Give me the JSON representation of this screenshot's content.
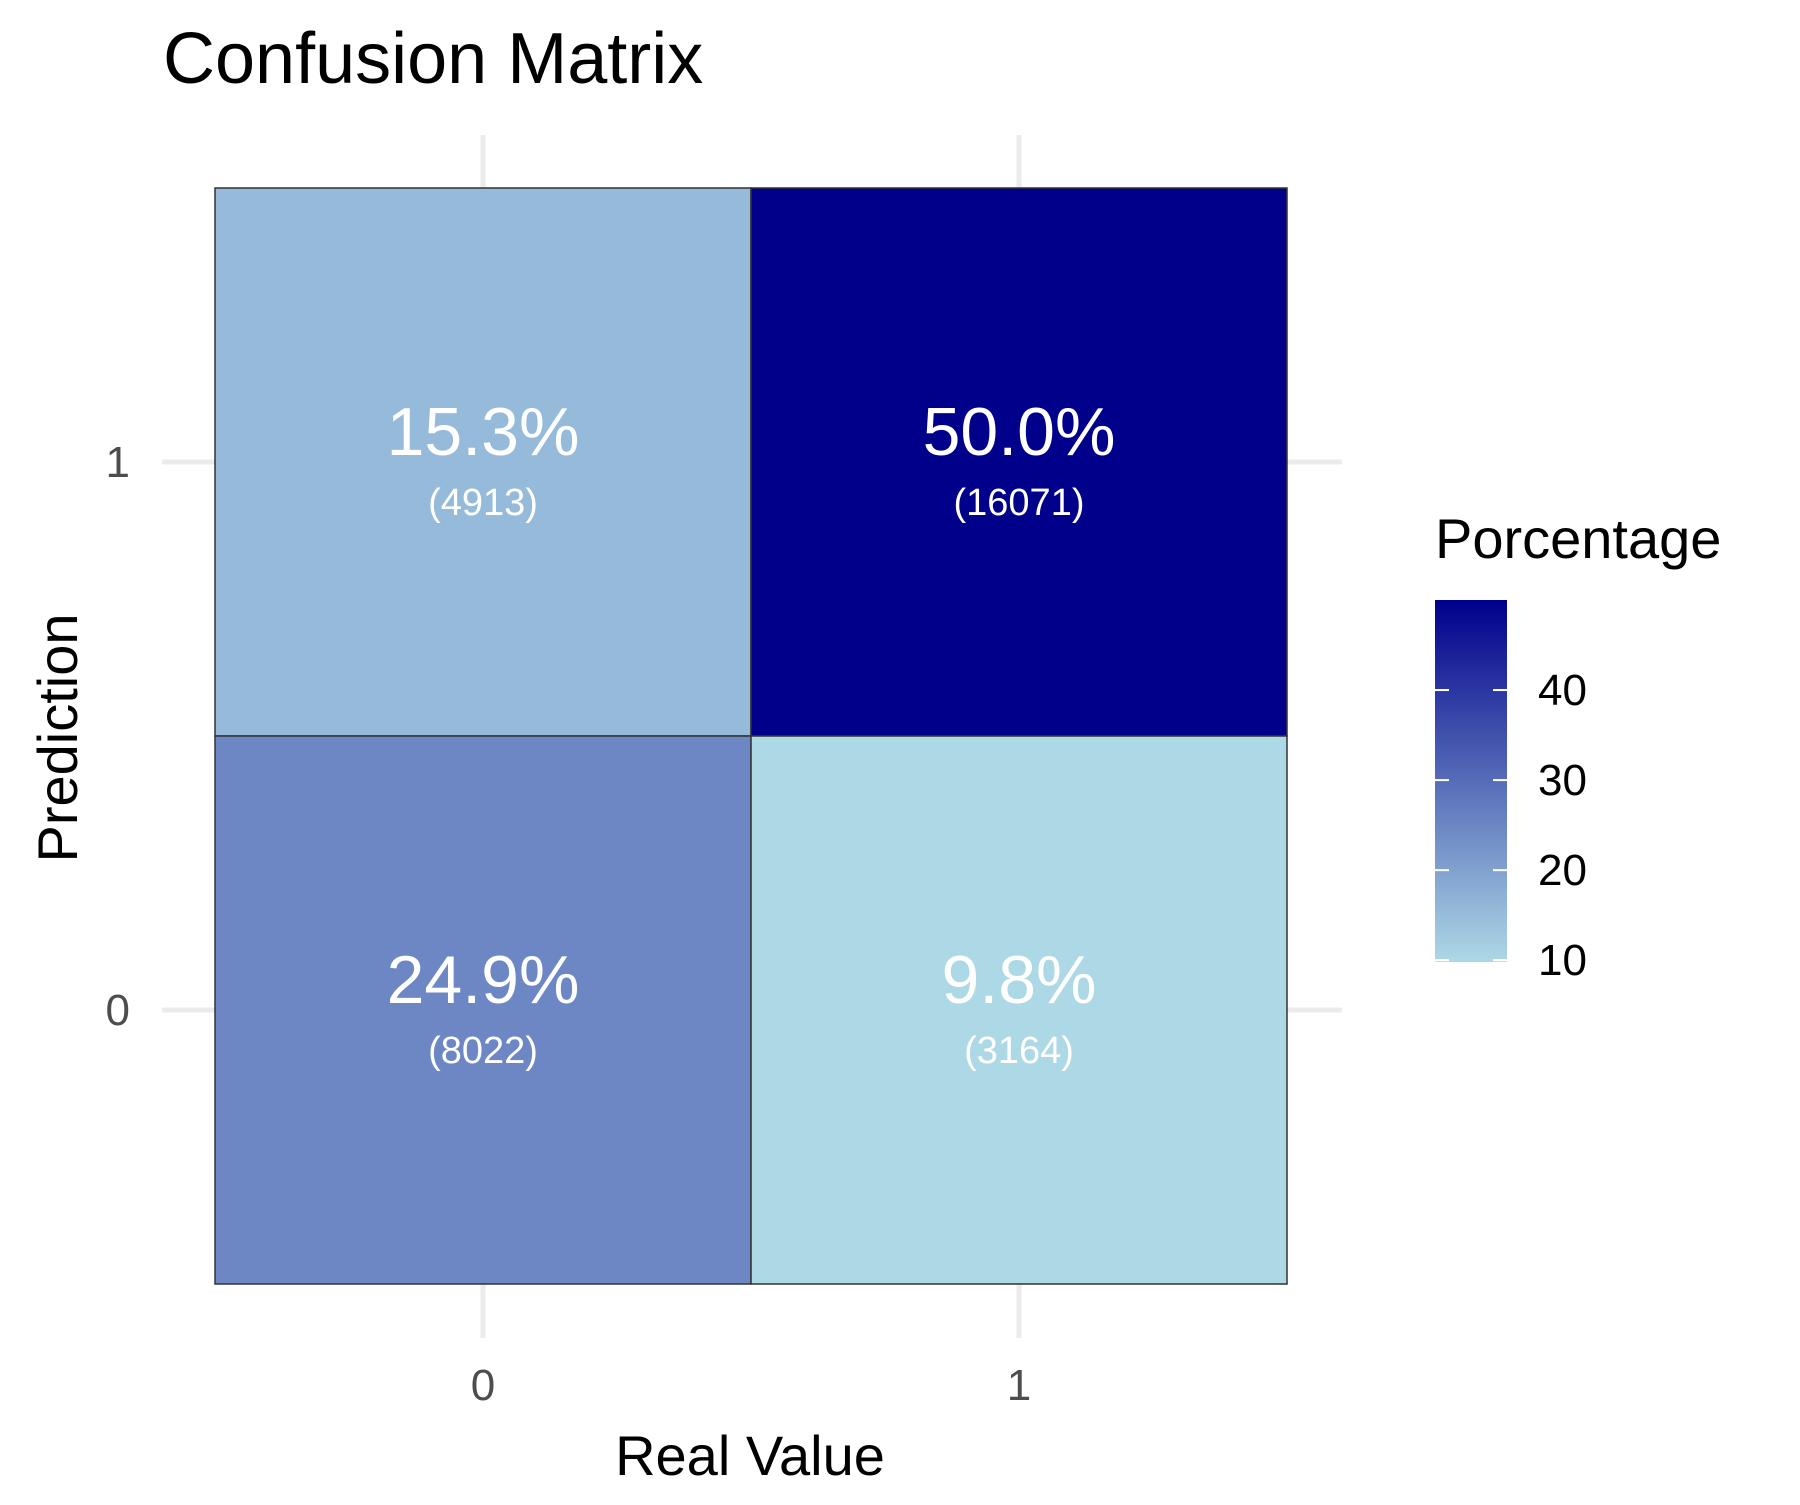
{
  "chart_data": {
    "type": "heatmap",
    "title": "Confusion Matrix",
    "xlabel": "Real Value",
    "ylabel": "Prediction",
    "x_categories": [
      "0",
      "1"
    ],
    "y_categories": [
      "0",
      "1"
    ],
    "cells": [
      {
        "real": "0",
        "prediction": "1",
        "percent": 15.3,
        "percent_label": "15.3%",
        "count": 4913,
        "count_label": "(4913)"
      },
      {
        "real": "1",
        "prediction": "1",
        "percent": 50.0,
        "percent_label": "50.0%",
        "count": 16071,
        "count_label": "(16071)"
      },
      {
        "real": "0",
        "prediction": "0",
        "percent": 24.9,
        "percent_label": "24.9%",
        "count": 8022,
        "count_label": "(8022)"
      },
      {
        "real": "1",
        "prediction": "0",
        "percent": 9.8,
        "percent_label": "9.8%",
        "count": 3164,
        "count_label": "(3164)"
      }
    ],
    "legend": {
      "title": "Porcentage",
      "placement": "right",
      "range": [
        9.8,
        50.0
      ],
      "ticks": [
        10,
        20,
        30,
        40
      ],
      "tick_labels": [
        "10",
        "20",
        "30",
        "40"
      ],
      "low_color": "#add8e6",
      "high_color": "#00008b"
    },
    "grid": true,
    "label_color": "#ffffff"
  }
}
